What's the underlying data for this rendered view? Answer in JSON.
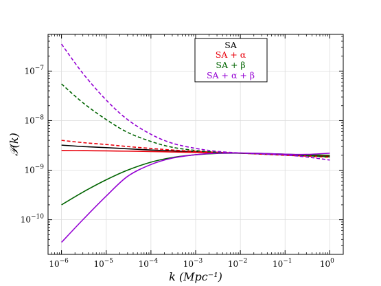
{
  "chart_data": {
    "type": "line",
    "title": "",
    "xlabel": "k (Mpc⁻¹)",
    "ylabel": "𝒫(k)",
    "xscale": "log",
    "yscale": "log",
    "xlim": [
      5e-07,
      2
    ],
    "ylim": [
      2e-11,
      5.5e-07
    ],
    "grid": true,
    "legend_position": "top-center",
    "x_ticks": [
      {
        "base": "10",
        "exp": "−6"
      },
      {
        "base": "10",
        "exp": "−5"
      },
      {
        "base": "10",
        "exp": "−4"
      },
      {
        "base": "10",
        "exp": "−3"
      },
      {
        "base": "10",
        "exp": "−2"
      },
      {
        "base": "10",
        "exp": "−1"
      },
      {
        "base": "10",
        "exp": "0"
      }
    ],
    "y_ticks": [
      {
        "base": "10",
        "exp": "−10"
      },
      {
        "base": "10",
        "exp": "−9"
      },
      {
        "base": "10",
        "exp": "−8"
      },
      {
        "base": "10",
        "exp": "−7"
      }
    ],
    "legend": [
      {
        "label": "SA",
        "color": "#000000"
      },
      {
        "label": "SA + α",
        "color": "#e8000b"
      },
      {
        "label": "SA + β",
        "color": "#006400"
      },
      {
        "label": "SA + α + β",
        "color": "#9400d3"
      }
    ],
    "x": [
      1e-06,
      3e-06,
      1e-05,
      3e-05,
      0.0001,
      0.0003,
      0.001,
      0.003,
      0.01,
      0.03,
      0.1,
      0.3,
      1
    ],
    "series": [
      {
        "color": "#000000",
        "style": "solid",
        "values": [
          3.2e-09,
          3e-09,
          2.85e-09,
          2.7e-09,
          2.55e-09,
          2.45e-09,
          2.35e-09,
          2.27e-09,
          2.2e-09,
          2.13e-09,
          2.05e-09,
          1.98e-09,
          1.88e-09
        ]
      },
      {
        "color": "#e8000b",
        "style": "dashed",
        "values": [
          4e-09,
          3.6e-09,
          3.3e-09,
          3e-09,
          2.75e-09,
          2.55e-09,
          2.4e-09,
          2.3e-09,
          2.2e-09,
          2.1e-09,
          2e-09,
          1.92e-09,
          1.82e-09
        ]
      },
      {
        "color": "#e8000b",
        "style": "solid",
        "values": [
          2.5e-09,
          2.48e-09,
          2.45e-09,
          2.42e-09,
          2.38e-09,
          2.33e-09,
          2.28e-09,
          2.24e-09,
          2.2e-09,
          2.15e-09,
          2.08e-09,
          2.02e-09,
          1.95e-09
        ]
      },
      {
        "color": "#006400",
        "style": "dashed",
        "values": [
          5.5e-08,
          2.3e-08,
          1.05e-08,
          5.8e-09,
          3.8e-09,
          2.9e-09,
          2.5e-09,
          2.3e-09,
          2.2e-09,
          2.12e-09,
          2.03e-09,
          1.96e-09,
          1.85e-09
        ]
      },
      {
        "color": "#006400",
        "style": "solid",
        "values": [
          2e-10,
          3.6e-10,
          6.4e-10,
          1e-09,
          1.45e-09,
          1.8e-09,
          2.05e-09,
          2.18e-09,
          2.2e-09,
          2.18e-09,
          2.1e-09,
          2.04e-09,
          2e-09
        ]
      },
      {
        "color": "#9400d3",
        "style": "dashed",
        "values": [
          3.5e-07,
          9e-08,
          2.6e-08,
          1.05e-08,
          5.3e-09,
          3.5e-09,
          2.75e-09,
          2.4e-09,
          2.22e-09,
          2.12e-09,
          2.02e-09,
          1.85e-09,
          1.6e-09
        ]
      },
      {
        "color": "#9400d3",
        "style": "solid",
        "values": [
          3.5e-11,
          1e-10,
          3e-10,
          7.5e-10,
          1.3e-09,
          1.75e-09,
          2.05e-09,
          2.2e-09,
          2.22e-09,
          2.18e-09,
          2.1e-09,
          2.08e-09,
          2.2e-09
        ]
      }
    ]
  }
}
